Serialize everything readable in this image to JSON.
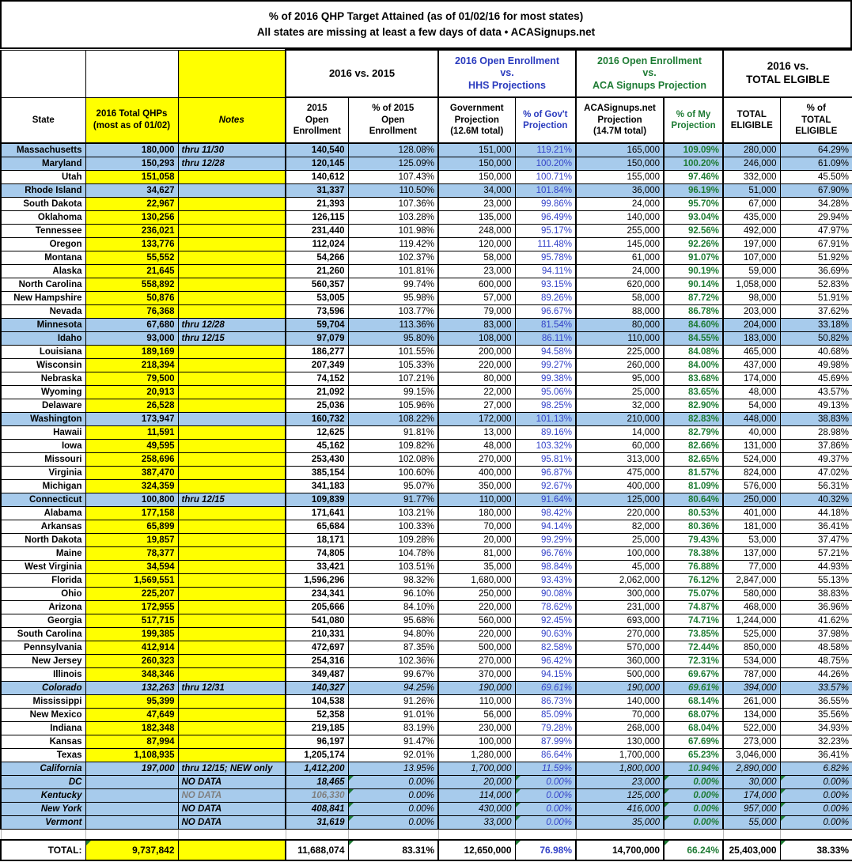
{
  "colors": {
    "row_highlight_blue": "#A7CBEC",
    "column_highlight_yellow": "#FFFF00",
    "hhs_blue_text": "#2A3BBE",
    "gov_pct_blue_text": "#3342C8",
    "aca_green_text": "#1E7B34",
    "grayed_text": "#7F7F7F",
    "flag_triangle_green": "#1E7B34"
  },
  "title": {
    "line1": "% of 2016 QHP Target Attained (as of 01/02/16 for most states)",
    "line2": "All states are missing at least a few days of data • ACASignups.net"
  },
  "table": {
    "groups": {
      "vs2015": "2016 vs. 2015",
      "hhs": "2016 Open Enrollment\nvs.\nHHS Projections",
      "aca": "2016 Open Enrollment\nvs.\nACA Signups Projection",
      "eligible": "2016 vs.\nTOTAL ELGIBLE"
    },
    "headers": {
      "state": "State",
      "qhps": "2016 Total QHPs\n(most as of 01/02)",
      "notes": "Notes",
      "oe2015": "2015\nOpen\nEnrollment",
      "pct2015": "% of 2015\nOpen\nEnrollment",
      "gov": "Government\nProjection\n(12.6M total)",
      "pctgov": "% of Gov't\nProjection",
      "aca": "ACASignups.net\nProjection\n(14.7M total)",
      "pctmy": "% of My\nProjection",
      "elig": "TOTAL\nELIGIBLE",
      "pctelig": "% of\nTOTAL\nELIGIBLE"
    },
    "col_keys": [
      "state",
      "qhps",
      "notes",
      "oe2015",
      "pct2015",
      "gov",
      "pctgov",
      "aca",
      "pctmy",
      "elig",
      "pctelig"
    ],
    "rows": [
      {
        "cells": [
          "Massachusetts",
          "180,000",
          "thru 11/30",
          "140,540",
          "128.08%",
          "151,000",
          "119.21%",
          "165,000",
          "109.09%",
          "280,000",
          "64.29%"
        ],
        "blue": true
      },
      {
        "cells": [
          "Maryland",
          "150,293",
          "thru 12/28",
          "120,145",
          "125.09%",
          "150,000",
          "100.20%",
          "150,000",
          "100.20%",
          "246,000",
          "61.09%"
        ],
        "blue": true
      },
      {
        "cells": [
          "Utah",
          "151,058",
          "",
          "140,612",
          "107.43%",
          "150,000",
          "100.71%",
          "155,000",
          "97.46%",
          "332,000",
          "45.50%"
        ]
      },
      {
        "cells": [
          "Rhode Island",
          "34,627",
          "",
          "31,337",
          "110.50%",
          "34,000",
          "101.84%",
          "36,000",
          "96.19%",
          "51,000",
          "67.90%"
        ],
        "blue": true
      },
      {
        "cells": [
          "South Dakota",
          "22,967",
          "",
          "21,393",
          "107.36%",
          "23,000",
          "99.86%",
          "24,000",
          "95.70%",
          "67,000",
          "34.28%"
        ]
      },
      {
        "cells": [
          "Oklahoma",
          "130,256",
          "",
          "126,115",
          "103.28%",
          "135,000",
          "96.49%",
          "140,000",
          "93.04%",
          "435,000",
          "29.94%"
        ]
      },
      {
        "cells": [
          "Tennessee",
          "236,021",
          "",
          "231,440",
          "101.98%",
          "248,000",
          "95.17%",
          "255,000",
          "92.56%",
          "492,000",
          "47.97%"
        ]
      },
      {
        "cells": [
          "Oregon",
          "133,776",
          "",
          "112,024",
          "119.42%",
          "120,000",
          "111.48%",
          "145,000",
          "92.26%",
          "197,000",
          "67.91%"
        ]
      },
      {
        "cells": [
          "Montana",
          "55,552",
          "",
          "54,266",
          "102.37%",
          "58,000",
          "95.78%",
          "61,000",
          "91.07%",
          "107,000",
          "51.92%"
        ]
      },
      {
        "cells": [
          "Alaska",
          "21,645",
          "",
          "21,260",
          "101.81%",
          "23,000",
          "94.11%",
          "24,000",
          "90.19%",
          "59,000",
          "36.69%"
        ]
      },
      {
        "cells": [
          "North Carolina",
          "558,892",
          "",
          "560,357",
          "99.74%",
          "600,000",
          "93.15%",
          "620,000",
          "90.14%",
          "1,058,000",
          "52.83%"
        ]
      },
      {
        "cells": [
          "New Hampshire",
          "50,876",
          "",
          "53,005",
          "95.98%",
          "57,000",
          "89.26%",
          "58,000",
          "87.72%",
          "98,000",
          "51.91%"
        ]
      },
      {
        "cells": [
          "Nevada",
          "76,368",
          "",
          "73,596",
          "103.77%",
          "79,000",
          "96.67%",
          "88,000",
          "86.78%",
          "203,000",
          "37.62%"
        ]
      },
      {
        "cells": [
          "Minnesota",
          "67,680",
          "thru 12/28",
          "59,704",
          "113.36%",
          "83,000",
          "81.54%",
          "80,000",
          "84.60%",
          "204,000",
          "33.18%"
        ],
        "blue": true
      },
      {
        "cells": [
          "Idaho",
          "93,000",
          "thru 12/15",
          "97,079",
          "95.80%",
          "108,000",
          "86.11%",
          "110,000",
          "84.55%",
          "183,000",
          "50.82%"
        ],
        "blue": true
      },
      {
        "cells": [
          "Louisiana",
          "189,169",
          "",
          "186,277",
          "101.55%",
          "200,000",
          "94.58%",
          "225,000",
          "84.08%",
          "465,000",
          "40.68%"
        ]
      },
      {
        "cells": [
          "Wisconsin",
          "218,394",
          "",
          "207,349",
          "105.33%",
          "220,000",
          "99.27%",
          "260,000",
          "84.00%",
          "437,000",
          "49.98%"
        ]
      },
      {
        "cells": [
          "Nebraska",
          "79,500",
          "",
          "74,152",
          "107.21%",
          "80,000",
          "99.38%",
          "95,000",
          "83.68%",
          "174,000",
          "45.69%"
        ]
      },
      {
        "cells": [
          "Wyoming",
          "20,913",
          "",
          "21,092",
          "99.15%",
          "22,000",
          "95.06%",
          "25,000",
          "83.65%",
          "48,000",
          "43.57%"
        ]
      },
      {
        "cells": [
          "Delaware",
          "26,528",
          "",
          "25,036",
          "105.96%",
          "27,000",
          "98.25%",
          "32,000",
          "82.90%",
          "54,000",
          "49.13%"
        ]
      },
      {
        "cells": [
          "Washington",
          "173,947",
          "",
          "160,732",
          "108.22%",
          "172,000",
          "101.13%",
          "210,000",
          "82.83%",
          "448,000",
          "38.83%"
        ],
        "blue": true
      },
      {
        "cells": [
          "Hawaii",
          "11,591",
          "",
          "12,625",
          "91.81%",
          "13,000",
          "89.16%",
          "14,000",
          "82.79%",
          "40,000",
          "28.98%"
        ]
      },
      {
        "cells": [
          "Iowa",
          "49,595",
          "",
          "45,162",
          "109.82%",
          "48,000",
          "103.32%",
          "60,000",
          "82.66%",
          "131,000",
          "37.86%"
        ]
      },
      {
        "cells": [
          "Missouri",
          "258,696",
          "",
          "253,430",
          "102.08%",
          "270,000",
          "95.81%",
          "313,000",
          "82.65%",
          "524,000",
          "49.37%"
        ]
      },
      {
        "cells": [
          "Virginia",
          "387,470",
          "",
          "385,154",
          "100.60%",
          "400,000",
          "96.87%",
          "475,000",
          "81.57%",
          "824,000",
          "47.02%"
        ]
      },
      {
        "cells": [
          "Michigan",
          "324,359",
          "",
          "341,183",
          "95.07%",
          "350,000",
          "92.67%",
          "400,000",
          "81.09%",
          "576,000",
          "56.31%"
        ]
      },
      {
        "cells": [
          "Connecticut",
          "100,800",
          "thru 12/15",
          "109,839",
          "91.77%",
          "110,000",
          "91.64%",
          "125,000",
          "80.64%",
          "250,000",
          "40.32%"
        ],
        "blue": true
      },
      {
        "cells": [
          "Alabama",
          "177,158",
          "",
          "171,641",
          "103.21%",
          "180,000",
          "98.42%",
          "220,000",
          "80.53%",
          "401,000",
          "44.18%"
        ]
      },
      {
        "cells": [
          "Arkansas",
          "65,899",
          "",
          "65,684",
          "100.33%",
          "70,000",
          "94.14%",
          "82,000",
          "80.36%",
          "181,000",
          "36.41%"
        ]
      },
      {
        "cells": [
          "North Dakota",
          "19,857",
          "",
          "18,171",
          "109.28%",
          "20,000",
          "99.29%",
          "25,000",
          "79.43%",
          "53,000",
          "37.47%"
        ]
      },
      {
        "cells": [
          "Maine",
          "78,377",
          "",
          "74,805",
          "104.78%",
          "81,000",
          "96.76%",
          "100,000",
          "78.38%",
          "137,000",
          "57.21%"
        ]
      },
      {
        "cells": [
          "West Virginia",
          "34,594",
          "",
          "33,421",
          "103.51%",
          "35,000",
          "98.84%",
          "45,000",
          "76.88%",
          "77,000",
          "44.93%"
        ]
      },
      {
        "cells": [
          "Florida",
          "1,569,551",
          "",
          "1,596,296",
          "98.32%",
          "1,680,000",
          "93.43%",
          "2,062,000",
          "76.12%",
          "2,847,000",
          "55.13%"
        ]
      },
      {
        "cells": [
          "Ohio",
          "225,207",
          "",
          "234,341",
          "96.10%",
          "250,000",
          "90.08%",
          "300,000",
          "75.07%",
          "580,000",
          "38.83%"
        ]
      },
      {
        "cells": [
          "Arizona",
          "172,955",
          "",
          "205,666",
          "84.10%",
          "220,000",
          "78.62%",
          "231,000",
          "74.87%",
          "468,000",
          "36.96%"
        ]
      },
      {
        "cells": [
          "Georgia",
          "517,715",
          "",
          "541,080",
          "95.68%",
          "560,000",
          "92.45%",
          "693,000",
          "74.71%",
          "1,244,000",
          "41.62%"
        ]
      },
      {
        "cells": [
          "South Carolina",
          "199,385",
          "",
          "210,331",
          "94.80%",
          "220,000",
          "90.63%",
          "270,000",
          "73.85%",
          "525,000",
          "37.98%"
        ]
      },
      {
        "cells": [
          "Pennsylvania",
          "412,914",
          "",
          "472,697",
          "87.35%",
          "500,000",
          "82.58%",
          "570,000",
          "72.44%",
          "850,000",
          "48.58%"
        ]
      },
      {
        "cells": [
          "New Jersey",
          "260,323",
          "",
          "254,316",
          "102.36%",
          "270,000",
          "96.42%",
          "360,000",
          "72.31%",
          "534,000",
          "48.75%"
        ]
      },
      {
        "cells": [
          "Illinois",
          "348,346",
          "",
          "349,487",
          "99.67%",
          "370,000",
          "94.15%",
          "500,000",
          "69.67%",
          "787,000",
          "44.26%"
        ]
      },
      {
        "cells": [
          "Colorado",
          "132,263",
          "thru 12/31",
          "140,327",
          "94.25%",
          "190,000",
          "69.61%",
          "190,000",
          "69.61%",
          "394,000",
          "33.57%"
        ],
        "blue": true,
        "italic": true
      },
      {
        "cells": [
          "Mississippi",
          "95,399",
          "",
          "104,538",
          "91.26%",
          "110,000",
          "86.73%",
          "140,000",
          "68.14%",
          "261,000",
          "36.55%"
        ]
      },
      {
        "cells": [
          "New Mexico",
          "47,649",
          "",
          "52,358",
          "91.01%",
          "56,000",
          "85.09%",
          "70,000",
          "68.07%",
          "134,000",
          "35.56%"
        ]
      },
      {
        "cells": [
          "Indiana",
          "182,348",
          "",
          "219,185",
          "83.19%",
          "230,000",
          "79.28%",
          "268,000",
          "68.04%",
          "522,000",
          "34.93%"
        ]
      },
      {
        "cells": [
          "Kansas",
          "87,994",
          "",
          "96,197",
          "91.47%",
          "100,000",
          "87.99%",
          "130,000",
          "67.69%",
          "273,000",
          "32.23%"
        ]
      },
      {
        "cells": [
          "Texas",
          "1,108,935",
          "",
          "1,205,174",
          "92.01%",
          "1,280,000",
          "86.64%",
          "1,700,000",
          "65.23%",
          "3,046,000",
          "36.41%"
        ]
      },
      {
        "cells": [
          "California",
          "197,000",
          "thru 12/15; NEW only",
          "1,412,200",
          "13.95%",
          "1,700,000",
          "11.59%",
          "1,800,000",
          "10.94%",
          "2,890,000",
          "6.82%"
        ],
        "blue": true,
        "italic": true
      },
      {
        "cells": [
          "DC",
          "",
          "NO DATA",
          "18,465",
          "0.00%",
          "20,000",
          "0.00%",
          "23,000",
          "0.00%",
          "30,000",
          "0.00%"
        ],
        "blue": true,
        "italic": true,
        "flag_cols": [
          "pct2015",
          "pctgov",
          "pctmy",
          "pctelig"
        ]
      },
      {
        "cells": [
          "Kentucky",
          "",
          "NO DATA",
          "106,330",
          "0.00%",
          "114,000",
          "0.00%",
          "125,000",
          "0.00%",
          "174,000",
          "0.00%"
        ],
        "blue": true,
        "italic": true,
        "gray": true,
        "flag_cols": [
          "pct2015",
          "pctgov",
          "pctmy",
          "pctelig"
        ]
      },
      {
        "cells": [
          "New York",
          "",
          "NO DATA",
          "408,841",
          "0.00%",
          "430,000",
          "0.00%",
          "416,000",
          "0.00%",
          "957,000",
          "0.00%"
        ],
        "blue": true,
        "italic": true,
        "flag_cols": [
          "pct2015",
          "pctgov",
          "pctmy",
          "pctelig"
        ]
      },
      {
        "cells": [
          "Vermont",
          "",
          "NO DATA",
          "31,619",
          "0.00%",
          "33,000",
          "0.00%",
          "35,000",
          "0.00%",
          "55,000",
          "0.00%"
        ],
        "blue": true,
        "italic": true,
        "flag_cols": [
          "pct2015",
          "pctgov",
          "pctmy",
          "pctelig"
        ]
      }
    ],
    "total": {
      "cells": [
        "TOTAL:",
        "9,737,842",
        "",
        "11,688,074",
        "83.31%",
        "12,650,000",
        "76.98%",
        "14,700,000",
        "66.24%",
        "25,403,000",
        "38.33%"
      ],
      "flag_cols": [
        "qhps",
        "pct2015",
        "pctgov",
        "pctmy",
        "pctelig"
      ]
    }
  }
}
